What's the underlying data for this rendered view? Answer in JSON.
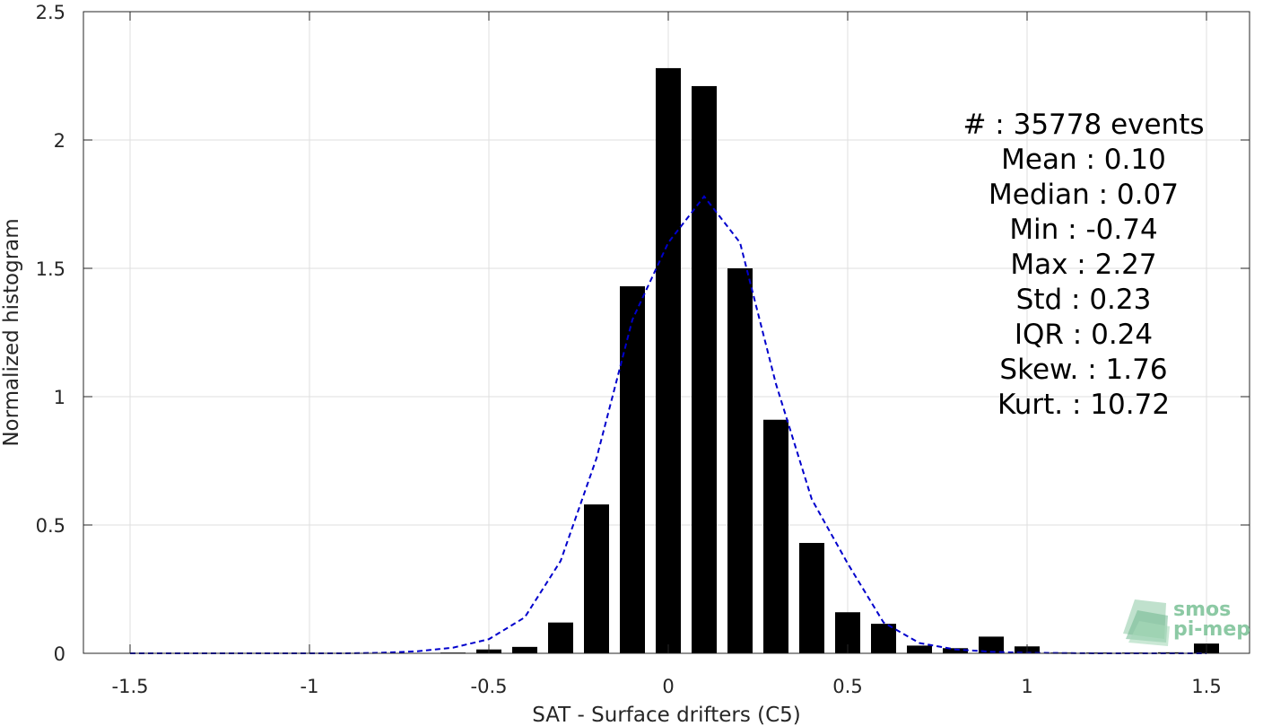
{
  "chart_data": {
    "type": "bar",
    "xlabel": "SAT - Surface drifters (C5)",
    "ylabel": "Normalized histogram",
    "xlim": [
      -1.63,
      1.62
    ],
    "ylim": [
      0,
      2.5
    ],
    "xticks": [
      -1.5,
      -1,
      -0.5,
      0,
      0.5,
      1,
      1.5
    ],
    "xtick_labels": [
      "-1.5",
      "-1",
      "-0.5",
      "0",
      "0.5",
      "1",
      "1.5"
    ],
    "yticks": [
      0,
      0.5,
      1,
      1.5,
      2,
      2.5
    ],
    "ytick_labels": [
      "0",
      "0.5",
      "1",
      "1.5",
      "2",
      "2.5"
    ],
    "grid": true,
    "bar_width": 0.07,
    "bars": {
      "x": [
        -0.6,
        -0.5,
        -0.4,
        -0.3,
        -0.2,
        -0.1,
        0.0,
        0.1,
        0.2,
        0.3,
        0.4,
        0.5,
        0.6,
        0.7,
        0.8,
        0.9,
        1.0,
        1.1,
        1.2,
        1.3,
        1.4,
        1.5
      ],
      "values": [
        0.003,
        0.015,
        0.025,
        0.12,
        0.58,
        1.43,
        2.28,
        2.21,
        1.5,
        0.91,
        0.43,
        0.16,
        0.115,
        0.03,
        0.02,
        0.065,
        0.027,
        0.003,
        0.003,
        0.003,
        0.004,
        0.038
      ],
      "color": "#000000"
    },
    "fit": {
      "style": "dashed",
      "color": "#0000cc",
      "x": [
        -1.5,
        -1.4,
        -1.3,
        -1.2,
        -1.1,
        -1.0,
        -0.9,
        -0.8,
        -0.7,
        -0.6,
        -0.5,
        -0.4,
        -0.3,
        -0.2,
        -0.1,
        0.0,
        0.1,
        0.2,
        0.3,
        0.4,
        0.5,
        0.6,
        0.7,
        0.8,
        0.9,
        1.0,
        1.1,
        1.2,
        1.3,
        1.4,
        1.5
      ],
      "y": [
        0,
        0,
        0,
        0,
        0,
        0,
        0,
        0.002,
        0.008,
        0.022,
        0.055,
        0.14,
        0.36,
        0.76,
        1.3,
        1.6,
        1.78,
        1.6,
        1.05,
        0.6,
        0.35,
        0.12,
        0.04,
        0.015,
        0.006,
        0.002,
        0.001,
        0,
        0,
        0,
        0
      ]
    },
    "stats": [
      "#  : 35778 events",
      "Mean : 0.10",
      "Median : 0.07",
      "Min : -0.74",
      "Max : 2.27",
      "Std : 0.23",
      "IQR : 0.24",
      "Skew. : 1.76",
      "Kurt. : 10.72"
    ]
  },
  "logo": {
    "line1": "smos",
    "line2": "pi-mep"
  },
  "colors": {
    "axis": "#262626",
    "grid": "#dfdfdf",
    "bar": "#000000",
    "fit": "#0000cc",
    "logo": "#8cc9a4"
  }
}
